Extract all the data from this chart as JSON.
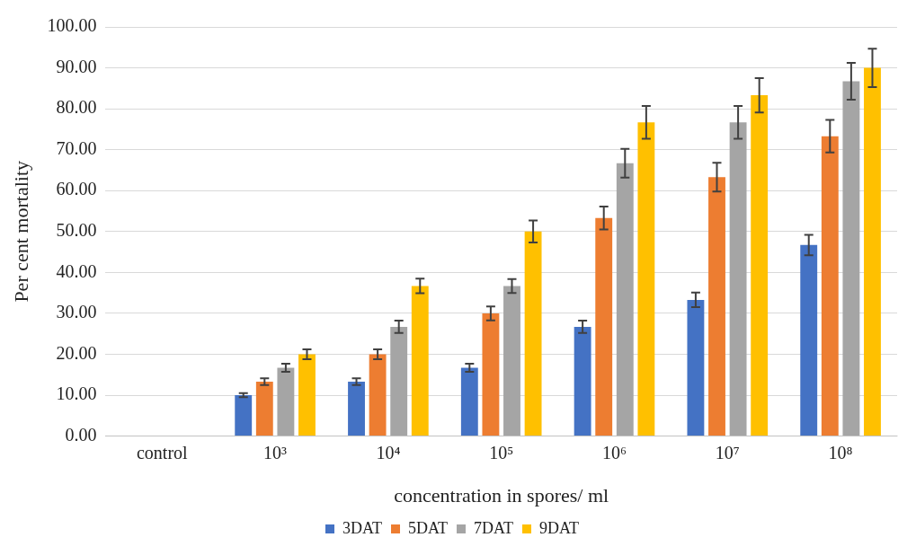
{
  "chart_data": {
    "type": "bar",
    "xlabel": "concentration in spores/ ml",
    "ylabel": "Per cent mortality",
    "categories": [
      "control",
      "10³",
      "10⁴",
      "10⁵",
      "10⁶",
      "10⁷",
      "10⁸"
    ],
    "series": [
      {
        "name": "3DAT",
        "color": "#4472c4",
        "values": [
          0,
          10,
          13.3,
          16.7,
          26.7,
          33.3,
          46.7
        ],
        "errors": [
          null,
          0.5,
          0.8,
          1,
          1.5,
          1.8,
          2.5
        ]
      },
      {
        "name": "5DAT",
        "color": "#ed7d31",
        "values": [
          0,
          13.3,
          20,
          30,
          53.3,
          63.3,
          73.3
        ],
        "errors": [
          null,
          0.8,
          1.2,
          1.7,
          2.8,
          3.5,
          4
        ]
      },
      {
        "name": "7DAT",
        "color": "#a5a5a5",
        "values": [
          0,
          16.7,
          26.7,
          36.7,
          66.7,
          76.7,
          86.7
        ],
        "errors": [
          null,
          1,
          1.5,
          1.7,
          3.5,
          4,
          4.5
        ]
      },
      {
        "name": "9DAT",
        "color": "#ffc000",
        "values": [
          0,
          20,
          36.7,
          50,
          76.7,
          83.3,
          90
        ],
        "errors": [
          null,
          1.2,
          1.8,
          2.7,
          4,
          4.2,
          4.7
        ]
      }
    ],
    "ylim": [
      0,
      100
    ],
    "yticks": [
      {
        "value": 0,
        "label": "0.00"
      },
      {
        "value": 10,
        "label": "10.00"
      },
      {
        "value": 20,
        "label": "20.00"
      },
      {
        "value": 30,
        "label": "30.00"
      },
      {
        "value": 40,
        "label": "40.00"
      },
      {
        "value": 50,
        "label": "50.00"
      },
      {
        "value": 60,
        "label": "60.00"
      },
      {
        "value": 70,
        "label": "70.00"
      },
      {
        "value": 80,
        "label": "80.00"
      },
      {
        "value": 90,
        "label": "90.00"
      },
      {
        "value": 100,
        "label": "100.00"
      }
    ],
    "grid": "y",
    "legend": "bottom"
  }
}
